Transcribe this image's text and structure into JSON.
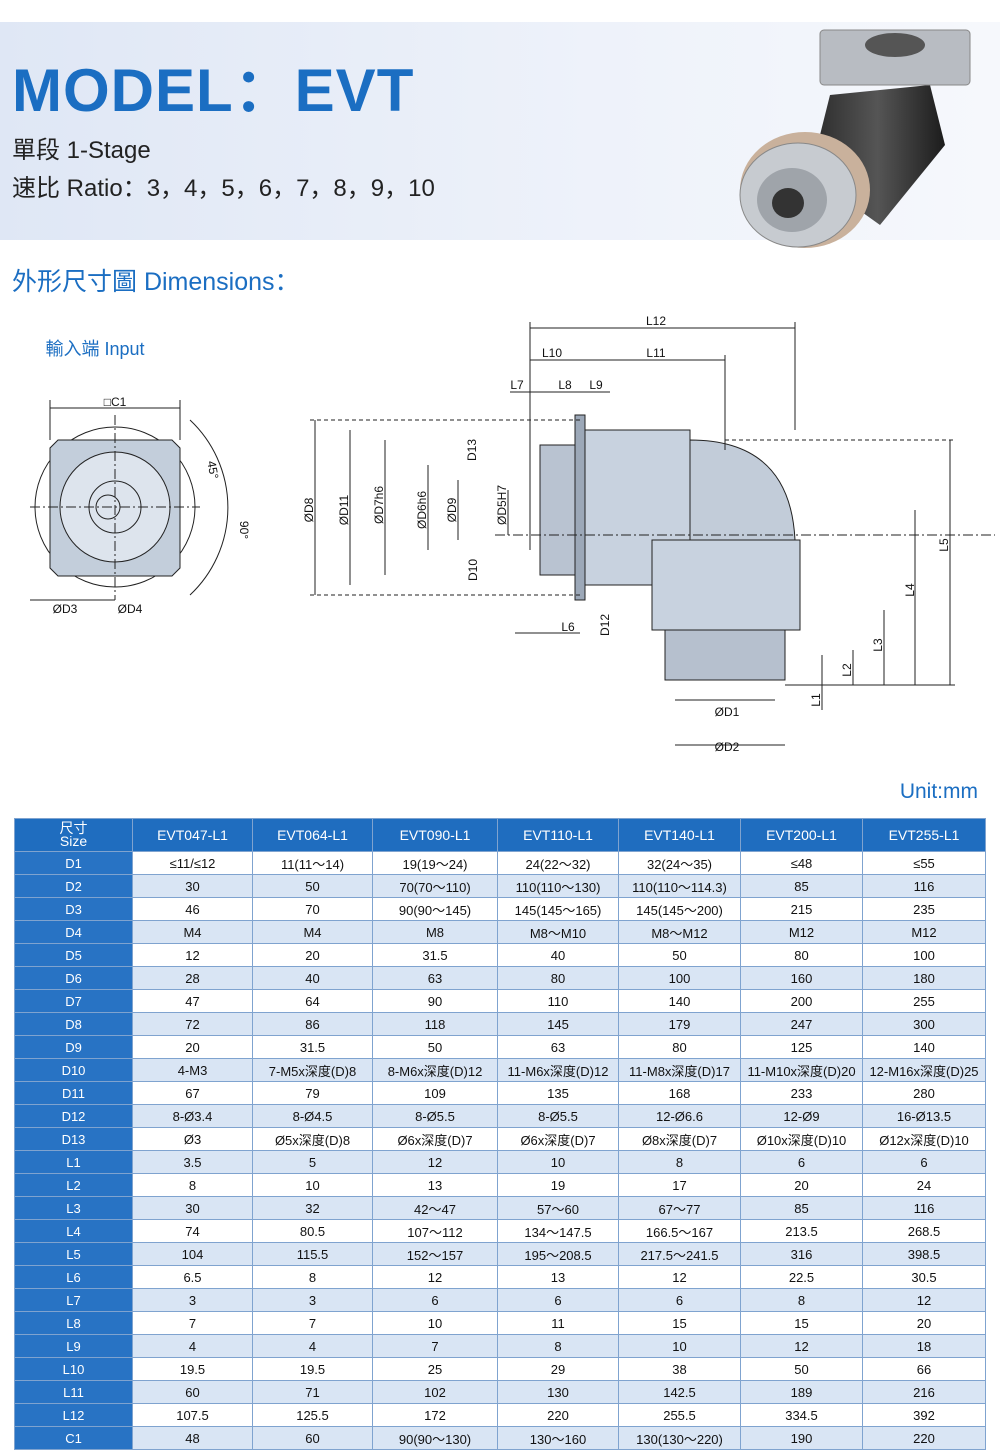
{
  "header": {
    "title": "MODEL：EVT",
    "stage": "單段 1-Stage",
    "ratio": "速比 Ratio：3，4，5，6，7，8，9，10"
  },
  "dimensions": {
    "heading": "外形尺寸圖 Dimensions：",
    "input_label": "輸入端 Input",
    "labels": {
      "C1": "□C1",
      "angle45": "45°",
      "angle90": "90°",
      "D3": "ØD3",
      "D4": "ØD4",
      "L12": "L12",
      "L10": "L10",
      "L11": "L11",
      "L7": "L7",
      "L8": "L8",
      "L9": "L9",
      "D13": "D13",
      "D8": "ØD8",
      "D11": "ØD11",
      "D7": "ØD7h6",
      "D6": "ØD6h6",
      "D9": "ØD9",
      "D5": "ØD5H7",
      "D10": "D10",
      "L6": "L6",
      "D12": "D12",
      "L5": "L5",
      "L4": "L4",
      "L3": "L3",
      "L2": "L2",
      "L1": "L1",
      "D1": "ØD1",
      "D2": "ØD2"
    }
  },
  "unit": "Unit:mm",
  "table": {
    "corner": [
      "尺寸",
      "Size"
    ],
    "columns": [
      "EVT047-L1",
      "EVT064-L1",
      "EVT090-L1",
      "EVT110-L1",
      "EVT140-L1",
      "EVT200-L1",
      "EVT255-L1"
    ],
    "rows": [
      [
        "D1",
        "≤11/≤12",
        "11(11～14)",
        "19(19～24)",
        "24(22～32)",
        "32(24～35)",
        "≤48",
        "≤55"
      ],
      [
        "D2",
        "30",
        "50",
        "70(70～110)",
        "110(110～130)",
        "110(110～114.3)",
        "85",
        "116"
      ],
      [
        "D3",
        "46",
        "70",
        "90(90～145)",
        "145(145～165)",
        "145(145～200)",
        "215",
        "235"
      ],
      [
        "D4",
        "M4",
        "M4",
        "M8",
        "M8～M10",
        "M8～M12",
        "M12",
        "M12"
      ],
      [
        "D5",
        "12",
        "20",
        "31.5",
        "40",
        "50",
        "80",
        "100"
      ],
      [
        "D6",
        "28",
        "40",
        "63",
        "80",
        "100",
        "160",
        "180"
      ],
      [
        "D7",
        "47",
        "64",
        "90",
        "110",
        "140",
        "200",
        "255"
      ],
      [
        "D8",
        "72",
        "86",
        "118",
        "145",
        "179",
        "247",
        "300"
      ],
      [
        "D9",
        "20",
        "31.5",
        "50",
        "63",
        "80",
        "125",
        "140"
      ],
      [
        "D10",
        "4-M3",
        "7-M5x深度(D)8",
        "8-M6x深度(D)12",
        "11-M6x深度(D)12",
        "11-M8x深度(D)17",
        "11-M10x深度(D)20",
        "12-M16x深度(D)25"
      ],
      [
        "D11",
        "67",
        "79",
        "109",
        "135",
        "168",
        "233",
        "280"
      ],
      [
        "D12",
        "8-Ø3.4",
        "8-Ø4.5",
        "8-Ø5.5",
        "8-Ø5.5",
        "12-Ø6.6",
        "12-Ø9",
        "16-Ø13.5"
      ],
      [
        "D13",
        "Ø3",
        "Ø5x深度(D)8",
        "Ø6x深度(D)7",
        "Ø6x深度(D)7",
        "Ø8x深度(D)7",
        "Ø10x深度(D)10",
        "Ø12x深度(D)10"
      ],
      [
        "L1",
        "3.5",
        "5",
        "12",
        "10",
        "8",
        "6",
        "6"
      ],
      [
        "L2",
        "8",
        "10",
        "13",
        "19",
        "17",
        "20",
        "24"
      ],
      [
        "L3",
        "30",
        "32",
        "42～47",
        "57～60",
        "67～77",
        "85",
        "116"
      ],
      [
        "L4",
        "74",
        "80.5",
        "107～112",
        "134～147.5",
        "166.5～167",
        "213.5",
        "268.5"
      ],
      [
        "L5",
        "104",
        "115.5",
        "152～157",
        "195～208.5",
        "217.5～241.5",
        "316",
        "398.5"
      ],
      [
        "L6",
        "6.5",
        "8",
        "12",
        "13",
        "12",
        "22.5",
        "30.5"
      ],
      [
        "L7",
        "3",
        "3",
        "6",
        "6",
        "6",
        "8",
        "12"
      ],
      [
        "L8",
        "7",
        "7",
        "10",
        "11",
        "15",
        "15",
        "20"
      ],
      [
        "L9",
        "4",
        "4",
        "7",
        "8",
        "10",
        "12",
        "18"
      ],
      [
        "L10",
        "19.5",
        "19.5",
        "25",
        "29",
        "38",
        "50",
        "66"
      ],
      [
        "L11",
        "60",
        "71",
        "102",
        "130",
        "142.5",
        "189",
        "216"
      ],
      [
        "L12",
        "107.5",
        "125.5",
        "172",
        "220",
        "255.5",
        "334.5",
        "392"
      ],
      [
        "C1",
        "48",
        "60",
        "90(90～130)",
        "130～160",
        "130(130～220)",
        "190",
        "220"
      ]
    ]
  }
}
